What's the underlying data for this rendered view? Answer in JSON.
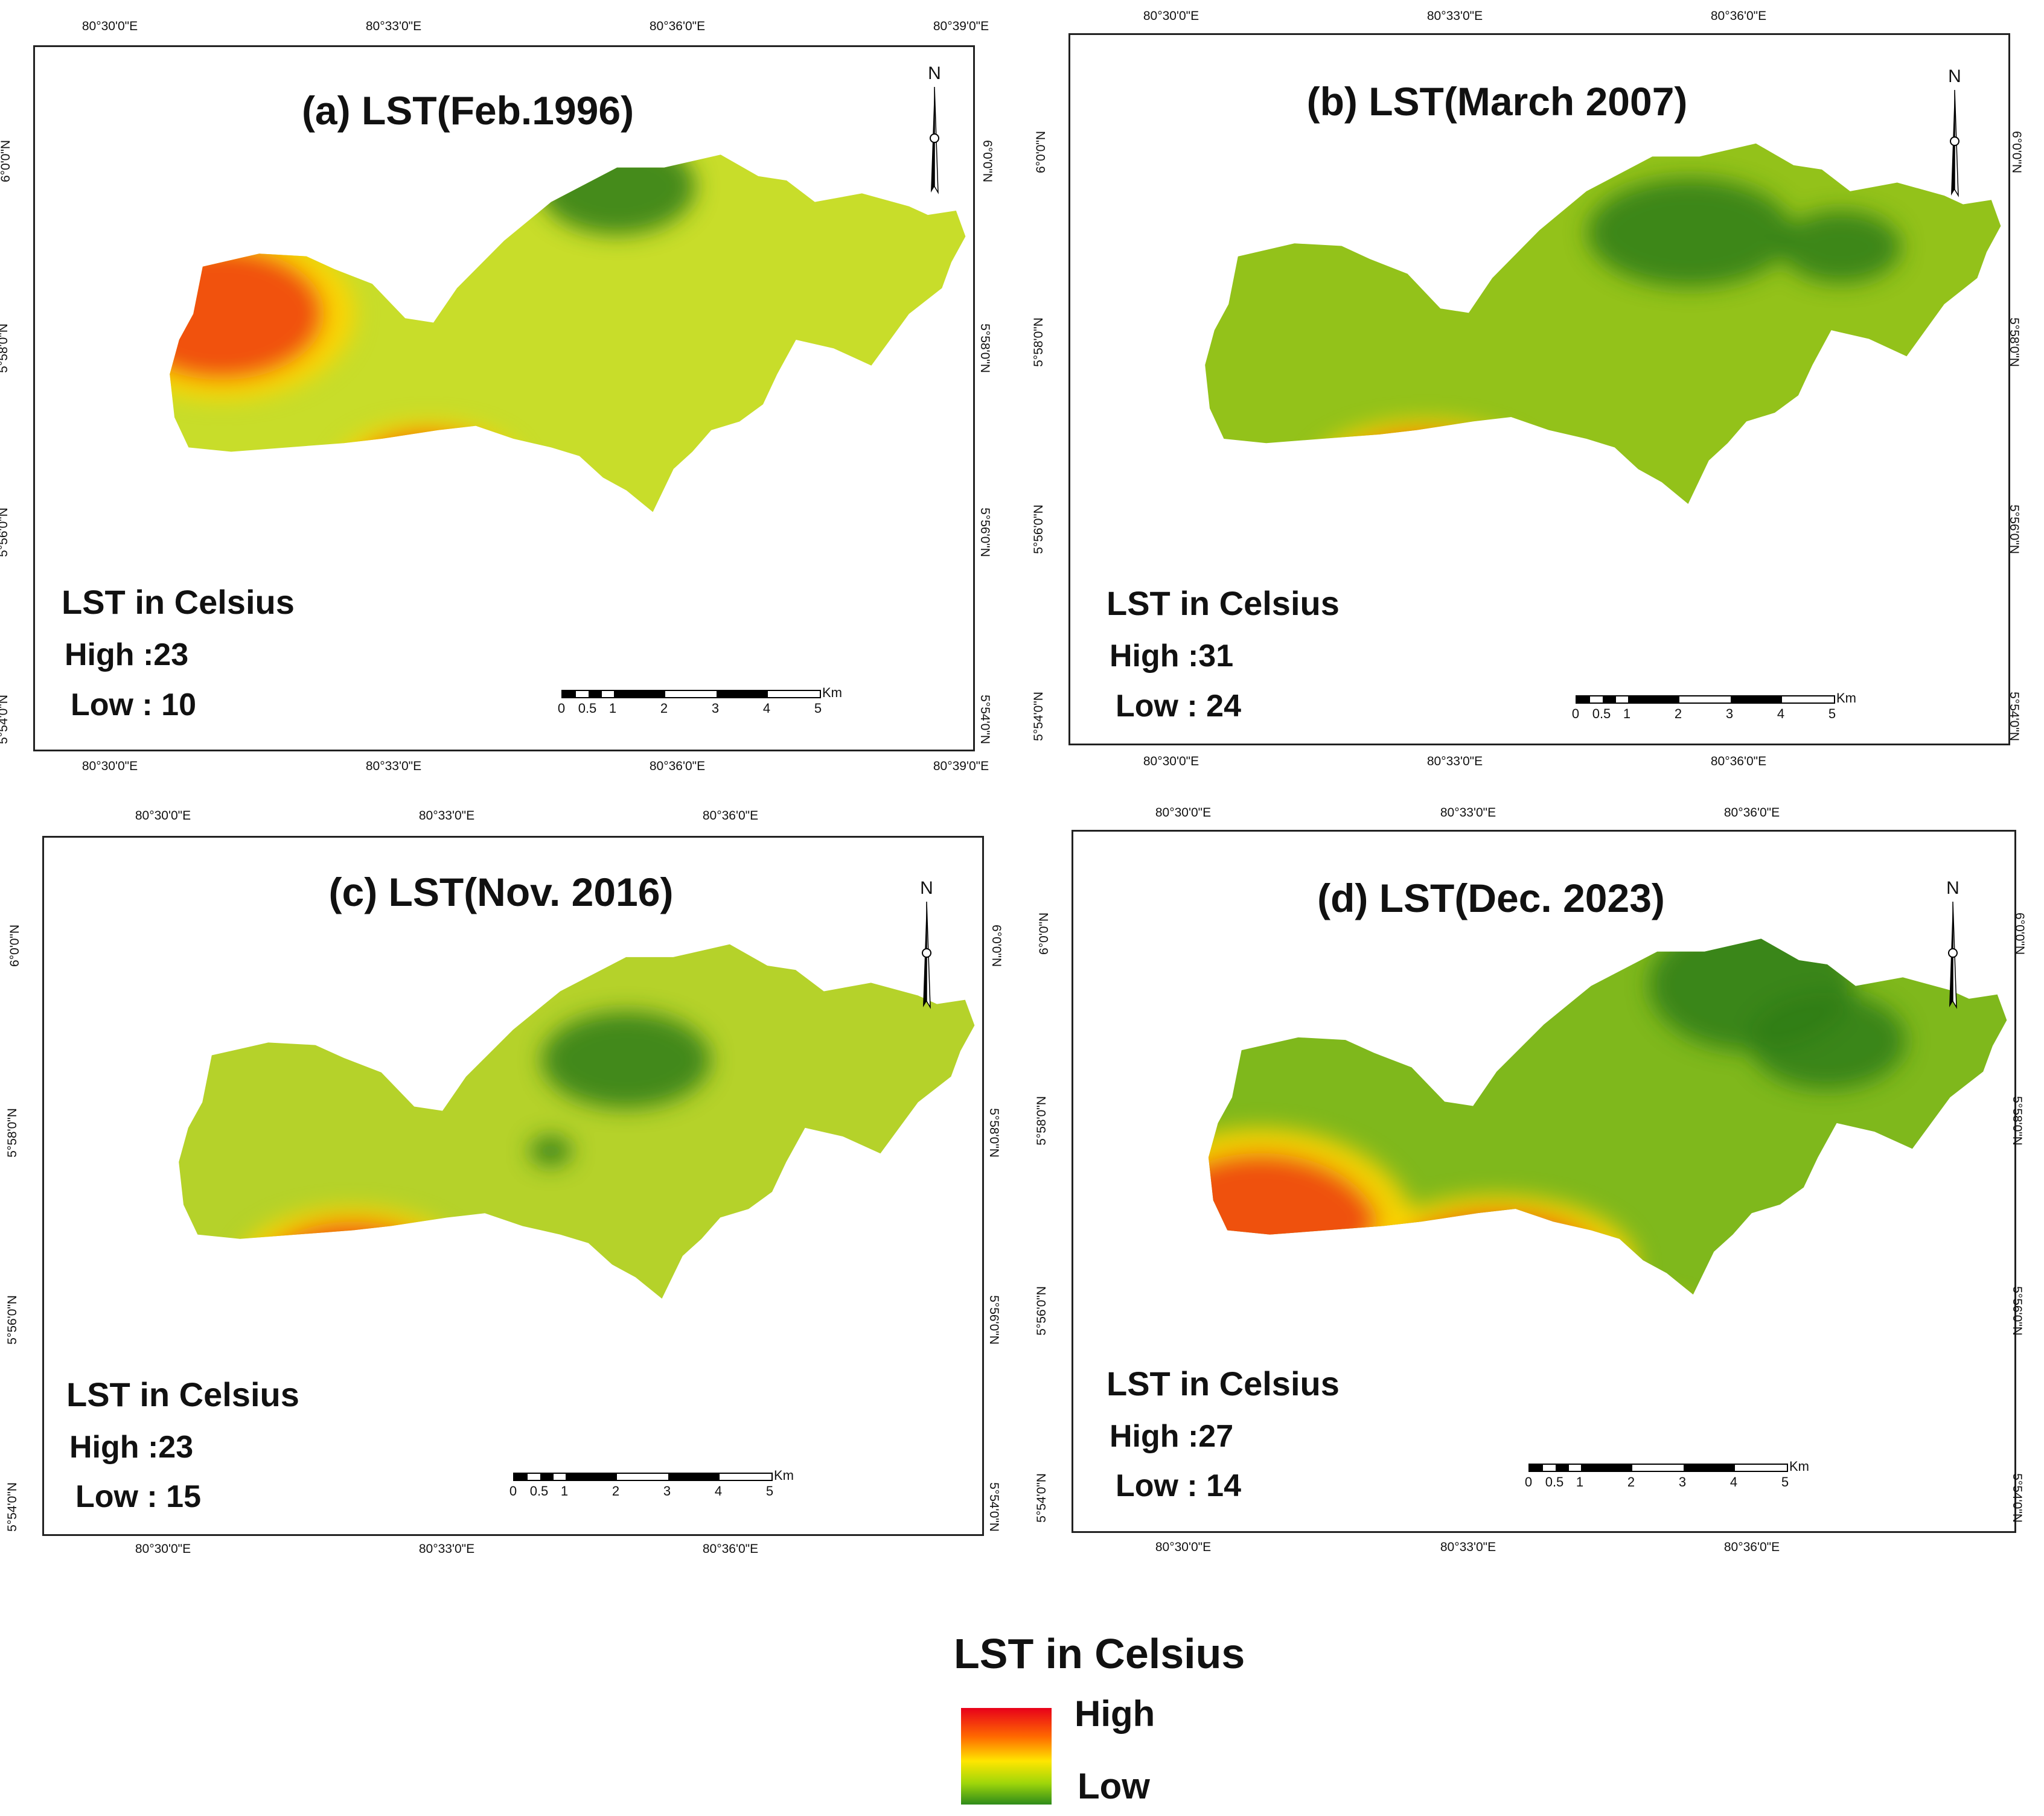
{
  "figure": {
    "legend": {
      "title": "LST in  Celsius",
      "high_label": "High",
      "low_label": "Low",
      "ramp_colors": [
        "#e8001a",
        "#ff6a00",
        "#ffe600",
        "#9fd60a",
        "#2e8b1a"
      ]
    }
  },
  "panels": [
    {
      "title": "(a) LST(Feb.1996)",
      "legend_heading": "LST in Celsius",
      "high": "High :23",
      "low": "Low : 10",
      "lon_top": [
        "80°30'0\"E",
        "80°33'0\"E",
        "80°36'0\"E",
        "80°39'0\"E"
      ],
      "lon_bottom": [
        "80°30'0\"E",
        "80°33'0\"E",
        "80°36'0\"E",
        "80°39'0\"E"
      ],
      "lat_left": [
        "6°0'0\"N",
        "5°58'0\"N",
        "5°56'0\"N",
        "5°54'0\"N"
      ],
      "lat_right": [
        "6°0'0\"N",
        "5°58'0\"N",
        "5°56'0\"N",
        "5°54'0\"N"
      ],
      "north": "N",
      "scale_ticks": [
        "0",
        "0.5",
        "1",
        "2",
        "3",
        "4",
        "5"
      ],
      "scale_unit": "Km"
    },
    {
      "title": "(b) LST(March 2007)",
      "legend_heading": "LST in Celsius",
      "high": "High :31",
      "low": "Low : 24",
      "lon_top": [
        "80°30'0\"E",
        "80°33'0\"E",
        "80°36'0\"E"
      ],
      "lon_bottom": [
        "80°30'0\"E",
        "80°33'0\"E",
        "80°36'0\"E"
      ],
      "lat_left": [
        "6°0'0\"N",
        "5°58'0\"N",
        "5°56'0\"N",
        "5°54'0\"N"
      ],
      "lat_right": [
        "6°0'0\"N",
        "5°58'0\"N",
        "5°56'0\"N",
        "5°54'0\"N"
      ],
      "north": "N",
      "scale_ticks": [
        "0",
        "0.5",
        "1",
        "2",
        "3",
        "4",
        "5"
      ],
      "scale_unit": "Km"
    },
    {
      "title": "(c) LST(Nov. 2016)",
      "legend_heading": "LST in Celsius",
      "high": "High :23",
      "low": "Low : 15",
      "lon_top": [
        "80°30'0\"E",
        "80°33'0\"E",
        "80°36'0\"E"
      ],
      "lon_bottom": [
        "80°30'0\"E",
        "80°33'0\"E",
        "80°36'0\"E"
      ],
      "lat_left": [
        "6°0'0\"N",
        "5°58'0\"N",
        "5°56'0\"N",
        "5°54'0\"N"
      ],
      "lat_right": [
        "6°0'0\"N",
        "5°58'0\"N",
        "5°56'0\"N",
        "5°54'0\"N"
      ],
      "north": "N",
      "scale_ticks": [
        "0",
        "0.5",
        "1",
        "2",
        "3",
        "4",
        "5"
      ],
      "scale_unit": "Km"
    },
    {
      "title": "(d) LST(Dec. 2023)",
      "legend_heading": "LST in Celsius",
      "high": "High :27",
      "low": "Low : 14",
      "lon_top": [
        "80°30'0\"E",
        "80°33'0\"E",
        "80°36'0\"E"
      ],
      "lon_bottom": [
        "80°30'0\"E",
        "80°33'0\"E",
        "80°36'0\"E"
      ],
      "lat_left": [
        "6°0'0\"N",
        "5°58'0\"N",
        "5°56'0\"N",
        "5°54'0\"N"
      ],
      "lat_right": [
        "6°0'0\"N",
        "5°58'0\"N",
        "5°56'0\"N",
        "5°54'0\"N"
      ],
      "north": "N",
      "scale_ticks": [
        "0",
        "0.5",
        "1",
        "2",
        "3",
        "4",
        "5"
      ],
      "scale_unit": "Km"
    }
  ]
}
